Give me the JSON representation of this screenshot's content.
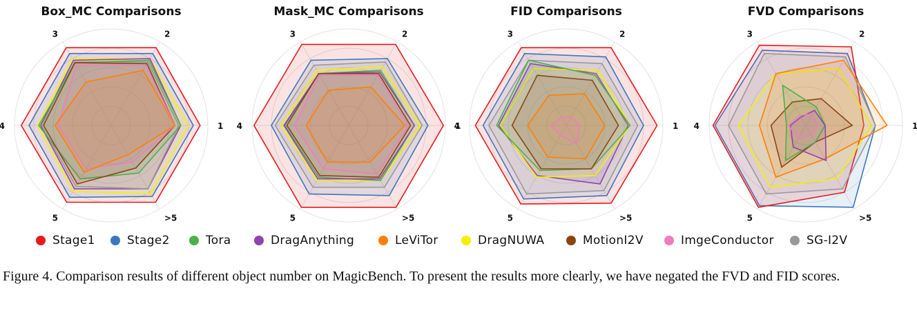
{
  "caption": "Figure 4. Comparison results of different object number on MagicBench. To present the results more clearly, we have negated the FVD and FID scores.",
  "series_colors": {
    "Stage1": "#e41a1c",
    "Stage2": "#3a78bd",
    "Tora": "#4daf4a",
    "DragAnything": "#8e44ad",
    "LeViTor": "#ff7f00",
    "DragNUWA": "#f5f000",
    "MotionI2V": "#8b4513",
    "ImgeConductor": "#f07cc0",
    "SG-I2V": "#999999"
  },
  "legend": [
    {
      "label": "Stage1",
      "color": "#e41a1c"
    },
    {
      "label": "Stage2",
      "color": "#3a78bd"
    },
    {
      "label": "Tora",
      "color": "#4daf4a"
    },
    {
      "label": "DragAnything",
      "color": "#8e44ad"
    },
    {
      "label": "LeViTor",
      "color": "#ff7f00"
    },
    {
      "label": "DragNUWA",
      "color": "#f5f000"
    },
    {
      "label": "MotionI2V",
      "color": "#8b4513"
    },
    {
      "label": "ImgeConductor",
      "color": "#f07cc0"
    },
    {
      "label": "SG-I2V",
      "color": "#999999"
    }
  ],
  "chart_data": [
    {
      "type": "radar",
      "title": "Box_MC Comparisons",
      "axes": [
        "1",
        "2",
        "3",
        "4",
        "5",
        ">5"
      ],
      "rlim": [
        0,
        1
      ],
      "grid": true,
      "series": [
        {
          "name": "Stage1",
          "values": [
            0.92,
            0.93,
            0.93,
            0.93,
            0.92,
            0.92
          ]
        },
        {
          "name": "Stage2",
          "values": [
            0.85,
            0.86,
            0.86,
            0.85,
            0.86,
            0.85
          ]
        },
        {
          "name": "Tora",
          "values": [
            0.72,
            0.78,
            0.75,
            0.75,
            0.64,
            0.57
          ]
        },
        {
          "name": "DragAnything",
          "values": [
            0.72,
            0.8,
            0.78,
            0.73,
            0.76,
            0.76
          ]
        },
        {
          "name": "LeViTor",
          "values": [
            0.66,
            0.66,
            0.52,
            0.58,
            0.56,
            0.35
          ]
        },
        {
          "name": "DragNUWA",
          "values": [
            0.8,
            0.8,
            0.8,
            0.76,
            0.79,
            0.82
          ]
        },
        {
          "name": "MotionI2V",
          "values": [
            0.66,
            0.74,
            0.75,
            0.7,
            0.7,
            0.51
          ]
        },
        {
          "name": "ImgeConductor",
          "values": [
            0.66,
            0.72,
            0.72,
            0.55,
            0.52,
            0.44
          ]
        },
        {
          "name": "SG-I2V",
          "values": [
            0.7,
            0.76,
            0.76,
            0.72,
            0.73,
            0.76
          ]
        }
      ]
    },
    {
      "type": "radar",
      "title": "Mask_MC Comparisons",
      "axes": [
        "1",
        "2",
        "3",
        "4",
        "5",
        ">5"
      ],
      "rlim": [
        0,
        1
      ],
      "grid": true,
      "series": [
        {
          "name": "Stage1",
          "values": [
            0.98,
            0.97,
            0.97,
            0.98,
            0.98,
            0.98
          ]
        },
        {
          "name": "Stage2",
          "values": [
            0.82,
            0.8,
            0.78,
            0.8,
            0.82,
            0.84
          ]
        },
        {
          "name": "Tora",
          "values": [
            0.68,
            0.66,
            0.62,
            0.66,
            0.62,
            0.66
          ]
        },
        {
          "name": "DragAnything",
          "values": [
            0.68,
            0.64,
            0.62,
            0.67,
            0.64,
            0.64
          ]
        },
        {
          "name": "LeViTor",
          "values": [
            0.58,
            0.46,
            0.42,
            0.44,
            0.44,
            0.44
          ]
        },
        {
          "name": "DragNUWA",
          "values": [
            0.74,
            0.7,
            0.66,
            0.7,
            0.66,
            0.66
          ]
        },
        {
          "name": "MotionI2V",
          "values": [
            0.64,
            0.62,
            0.62,
            0.64,
            0.6,
            0.62
          ]
        },
        {
          "name": "ImgeConductor",
          "values": [
            0.62,
            0.6,
            0.6,
            0.56,
            0.52,
            0.58
          ]
        },
        {
          "name": "SG-I2V",
          "values": [
            0.76,
            0.76,
            0.72,
            0.76,
            0.74,
            0.74
          ]
        }
      ]
    },
    {
      "type": "radar",
      "title": "FID Comparisons",
      "axes": [
        "1",
        "2",
        "3",
        "4",
        "5",
        ">5"
      ],
      "rlim": [
        0,
        1
      ],
      "grid": true,
      "series": [
        {
          "name": "Stage1",
          "values": [
            0.94,
            0.93,
            0.93,
            0.94,
            0.94,
            0.93
          ]
        },
        {
          "name": "Stage2",
          "values": [
            0.8,
            0.82,
            0.86,
            0.86,
            0.88,
            0.84
          ]
        },
        {
          "name": "Tora",
          "values": [
            0.66,
            0.6,
            0.78,
            0.72,
            0.54,
            0.52
          ]
        },
        {
          "name": "DragAnything",
          "values": [
            0.64,
            0.62,
            0.74,
            0.7,
            0.6,
            0.7
          ]
        },
        {
          "name": "LeViTor",
          "values": [
            0.4,
            0.38,
            0.36,
            0.4,
            0.38,
            0.4
          ]
        },
        {
          "name": "DragNUWA",
          "values": [
            0.66,
            0.66,
            0.68,
            0.68,
            0.62,
            0.6
          ]
        },
        {
          "name": "MotionI2V",
          "values": [
            0.54,
            0.54,
            0.6,
            0.56,
            0.52,
            0.52
          ]
        },
        {
          "name": "ImgeConductor",
          "values": [
            0.14,
            0.1,
            0.1,
            0.16,
            0.12,
            0.22
          ]
        },
        {
          "name": "SG-I2V",
          "values": [
            0.74,
            0.74,
            0.78,
            0.8,
            0.82,
            0.78
          ]
        }
      ]
    },
    {
      "type": "radar",
      "title": "FVD Comparisons",
      "axes": [
        "1",
        "2",
        "3",
        "4",
        "5",
        ">5"
      ],
      "rlim": [
        0,
        1
      ],
      "grid": true,
      "series": [
        {
          "name": "Stage1",
          "values": [
            0.6,
            0.94,
            0.96,
            0.96,
            0.98,
            0.8
          ]
        },
        {
          "name": "Stage2",
          "values": [
            0.72,
            0.86,
            0.9,
            0.94,
            0.96,
            0.98
          ]
        },
        {
          "name": "Tora",
          "values": [
            0.2,
            0.22,
            0.48,
            0.2,
            0.42,
            0.2
          ]
        },
        {
          "name": "DragAnything",
          "values": [
            0.2,
            0.18,
            0.1,
            0.16,
            0.26,
            0.42
          ]
        },
        {
          "name": "LeViTor",
          "values": [
            0.84,
            0.78,
            0.62,
            0.48,
            0.62,
            0.4
          ]
        },
        {
          "name": "DragNUWA",
          "values": [
            0.68,
            0.68,
            0.62,
            0.7,
            0.74,
            0.64
          ]
        },
        {
          "name": "MotionI2V",
          "values": [
            0.48,
            0.32,
            0.28,
            0.36,
            0.5,
            0.2
          ]
        },
        {
          "name": "ImgeConductor",
          "values": [
            0.12,
            0.14,
            0.12,
            0.18,
            0.16,
            0.12
          ]
        },
        {
          "name": "SG-I2V",
          "values": [
            0.72,
            0.82,
            0.86,
            0.8,
            0.82,
            0.76
          ]
        }
      ]
    }
  ]
}
